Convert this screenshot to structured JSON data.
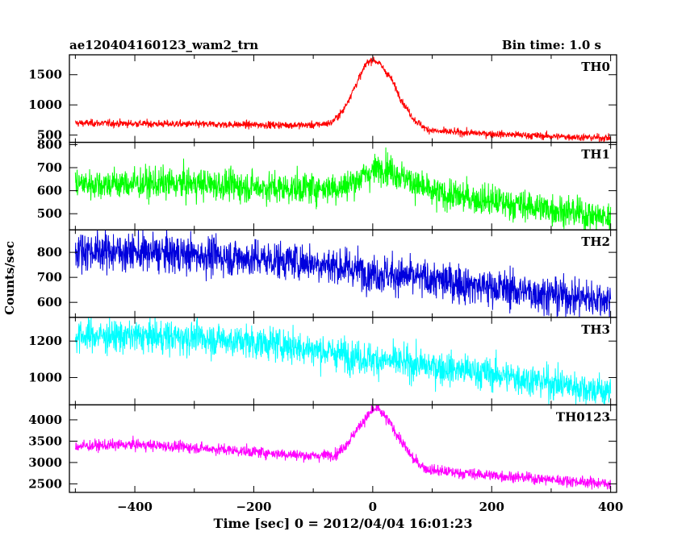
{
  "header": {
    "obs_id": "ae120404160123_wam2_trn",
    "bin_time": "Bin time: 1.0 s"
  },
  "chart_data": {
    "type": "line",
    "xlabel": "Time [sec] 0 = 2012/04/04 16:01:23",
    "ylabel": "Counts/sec",
    "xlim": [
      -510,
      410
    ],
    "x_ticks": [
      -400,
      -200,
      0,
      200,
      400
    ],
    "x_tick_labels": [
      "−400",
      "−200",
      "0",
      "200",
      "400"
    ],
    "x_range": [
      -500,
      400
    ],
    "panels": [
      {
        "name": "TH0",
        "color": "#ff0000",
        "ylim": [
          380,
          1830
        ],
        "yticks": [
          500,
          1000,
          1500
        ],
        "ytick_labels": [
          "500",
          "1000",
          "1500"
        ],
        "profile": {
          "x": [
            -500,
            -400,
            -300,
            -200,
            -100,
            -70,
            -50,
            -30,
            -10,
            0,
            10,
            30,
            50,
            70,
            90,
            110,
            200,
            300,
            400
          ],
          "y": [
            700,
            690,
            680,
            670,
            665,
            700,
            900,
            1300,
            1700,
            1750,
            1700,
            1450,
            1050,
            750,
            600,
            560,
            520,
            480,
            450
          ]
        },
        "noise": 30
      },
      {
        "name": "TH1",
        "color": "#00ff00",
        "ylim": [
          430,
          810
        ],
        "yticks": [
          500,
          600,
          700,
          800
        ],
        "ytick_labels": [
          "500",
          "600",
          "700",
          "800"
        ],
        "profile": {
          "x": [
            -500,
            -300,
            -150,
            -50,
            0,
            20,
            50,
            100,
            200,
            300,
            400
          ],
          "y": [
            630,
            630,
            610,
            615,
            685,
            705,
            660,
            590,
            555,
            520,
            480
          ]
        },
        "noise": 34
      },
      {
        "name": "TH2",
        "color": "#0000dd",
        "ylim": [
          540,
          890
        ],
        "yticks": [
          600,
          700,
          800
        ],
        "ytick_labels": [
          "600",
          "700",
          "800"
        ],
        "profile": {
          "x": [
            -500,
            -300,
            -100,
            0,
            100,
            200,
            300,
            400
          ],
          "y": [
            810,
            790,
            760,
            720,
            690,
            660,
            630,
            610
          ]
        },
        "noise": 38
      },
      {
        "name": "TH3",
        "color": "#00ffff",
        "ylim": [
          850,
          1330
        ],
        "yticks": [
          1000,
          1200
        ],
        "ytick_labels": [
          "1000",
          "1200"
        ],
        "profile": {
          "x": [
            -500,
            -300,
            -150,
            0,
            100,
            200,
            300,
            400
          ],
          "y": [
            1230,
            1220,
            1180,
            1100,
            1060,
            1020,
            970,
            920
          ]
        },
        "noise": 45
      },
      {
        "name": "TH0123",
        "color": "#ff00ff",
        "ylim": [
          2300,
          4350
        ],
        "yticks": [
          2500,
          3000,
          3500,
          4000
        ],
        "ytick_labels": [
          "2500",
          "3000",
          "3500",
          "4000"
        ],
        "profile": {
          "x": [
            -500,
            -400,
            -300,
            -200,
            -100,
            -60,
            -40,
            -20,
            0,
            10,
            30,
            50,
            70,
            90,
            110,
            200,
            300,
            400
          ],
          "y": [
            3380,
            3420,
            3350,
            3250,
            3150,
            3200,
            3500,
            3900,
            4230,
            4250,
            3900,
            3450,
            3050,
            2850,
            2800,
            2700,
            2600,
            2500
          ]
        },
        "noise": 65
      }
    ]
  }
}
